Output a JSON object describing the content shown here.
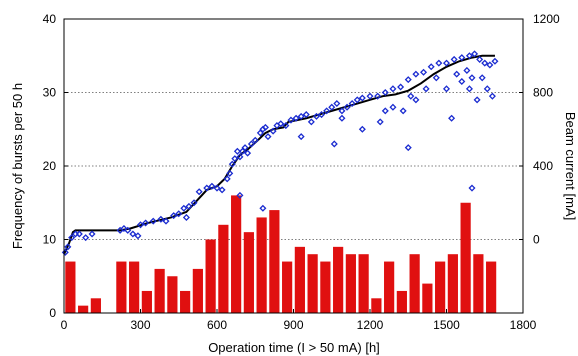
{
  "chart_data": {
    "type": "bar",
    "xlabel": "Operation time (I > 50 mA) [h]",
    "ylabel_left": "Frequency of bursts per 50 h",
    "ylabel_right": "Beam current [mA]",
    "xlim": [
      0,
      1800
    ],
    "ylim_left": [
      0,
      40
    ],
    "ylim_right": [
      -400,
      1200
    ],
    "x_ticks": [
      "0",
      "300",
      "600",
      "900",
      "1200",
      "1500",
      "1800"
    ],
    "y_left_ticks": [
      "0",
      "10",
      "20",
      "30",
      "40"
    ],
    "y_right_ticks": [
      "0",
      "400",
      "800",
      "1200"
    ],
    "grid": "horizontal dotted at 10, 20, 30",
    "colors": {
      "bars": "#e01010",
      "markers": "#1a2bd0",
      "line": "#000000"
    },
    "bars": {
      "name": "",
      "width": 40,
      "x": [
        25,
        75,
        125,
        225,
        275,
        325,
        375,
        425,
        475,
        525,
        575,
        625,
        675,
        725,
        775,
        825,
        875,
        925,
        975,
        1025,
        1075,
        1125,
        1175,
        1225,
        1275,
        1325,
        1375,
        1425,
        1475,
        1525,
        1575,
        1625,
        1675
      ],
      "values": [
        7,
        1,
        2,
        7,
        7,
        3,
        6,
        5,
        3,
        6,
        10,
        12,
        16,
        11,
        13,
        14,
        7,
        9,
        8,
        7,
        9,
        8,
        8,
        2,
        7,
        3,
        8,
        4,
        7,
        8,
        15,
        8,
        7
      ]
    },
    "line": {
      "name": "",
      "axis": "right",
      "x": [
        0,
        20,
        35,
        45,
        220,
        260,
        330,
        420,
        480,
        520,
        560,
        600,
        630,
        660,
        690,
        720,
        760,
        790,
        820,
        860,
        880,
        950,
        1000,
        1050,
        1100,
        1150,
        1200,
        1250,
        1300,
        1350,
        1400,
        1450,
        1500,
        1550,
        1600,
        1640,
        1690
      ],
      "y": [
        -80,
        -20,
        40,
        50,
        50,
        60,
        90,
        120,
        150,
        210,
        270,
        290,
        330,
        400,
        460,
        490,
        540,
        580,
        600,
        610,
        640,
        660,
        680,
        700,
        720,
        740,
        760,
        780,
        790,
        810,
        850,
        900,
        940,
        970,
        990,
        1000,
        1000
      ]
    },
    "scatter": {
      "name": "",
      "axis": "right",
      "x": [
        5,
        15,
        30,
        45,
        60,
        85,
        110,
        220,
        235,
        250,
        270,
        290,
        300,
        320,
        350,
        380,
        400,
        430,
        450,
        470,
        490,
        510,
        530,
        560,
        580,
        600,
        620,
        640,
        650,
        660,
        670,
        680,
        690,
        700,
        710,
        720,
        735,
        750,
        770,
        780,
        790,
        800,
        820,
        835,
        850,
        870,
        890,
        910,
        930,
        950,
        970,
        990,
        1010,
        1030,
        1050,
        1070,
        1090,
        1110,
        1130,
        1150,
        1170,
        1200,
        1230,
        1260,
        1290,
        1320,
        1350,
        1380,
        1410,
        1440,
        1470,
        1500,
        1530,
        1560,
        1590,
        1610,
        1630,
        1650,
        1670,
        1690,
        480,
        690,
        780,
        930,
        1060,
        1090,
        1170,
        1240,
        1290,
        1330,
        1360,
        1380,
        1420,
        1460,
        1500,
        1540,
        1560,
        1580,
        1590,
        1600,
        1620,
        1640,
        1660,
        1680,
        1260,
        1350,
        1520,
        1600
      ],
      "y": [
        -70,
        -40,
        10,
        30,
        30,
        10,
        30,
        50,
        60,
        50,
        30,
        20,
        80,
        90,
        100,
        110,
        100,
        130,
        140,
        170,
        180,
        200,
        260,
        280,
        290,
        280,
        270,
        330,
        360,
        410,
        440,
        480,
        450,
        480,
        500,
        470,
        520,
        540,
        580,
        600,
        610,
        560,
        590,
        620,
        630,
        620,
        650,
        660,
        670,
        680,
        640,
        670,
        680,
        700,
        720,
        740,
        700,
        720,
        740,
        760,
        770,
        780,
        780,
        800,
        820,
        830,
        870,
        900,
        910,
        940,
        960,
        960,
        980,
        990,
        1000,
        1010,
        980,
        960,
        950,
        970,
        120,
        240,
        170,
        560,
        520,
        660,
        600,
        640,
        720,
        700,
        780,
        760,
        820,
        880,
        820,
        900,
        860,
        920,
        820,
        880,
        760,
        880,
        820,
        780,
        700,
        500,
        660,
        280
      ]
    }
  }
}
